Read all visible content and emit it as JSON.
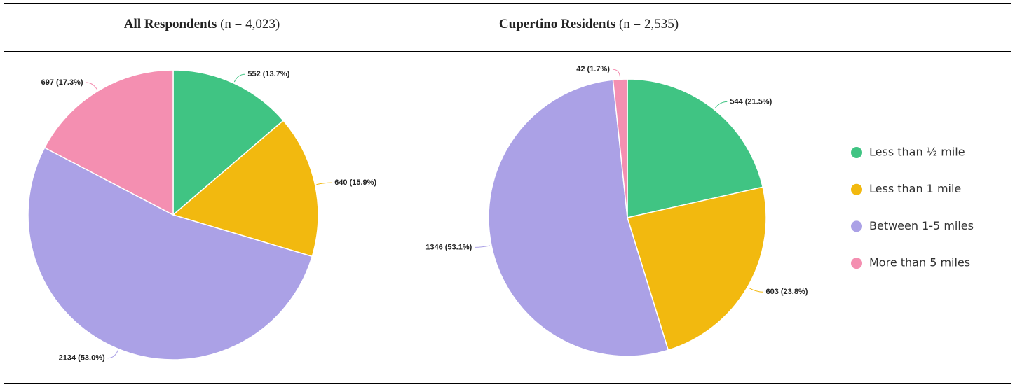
{
  "chart_data": [
    {
      "type": "pie",
      "title": "All Respondents",
      "subtitle": "(n = 4,023)",
      "categories": [
        "Less than ½ mile",
        "Less than 1 mile",
        "Between 1-5 miles",
        "More than 5 miles"
      ],
      "values": [
        552,
        640,
        2134,
        697
      ],
      "value_labels": [
        "552 (13.7%)",
        "640 (15.9%)",
        "2134 (53.0%)",
        "697 (17.3%)"
      ],
      "colors": [
        "#40c483",
        "#f2b90f",
        "#aba1e6",
        "#f48fb1"
      ]
    },
    {
      "type": "pie",
      "title": "Cupertino Residents",
      "subtitle": "(n = 2,535)",
      "categories": [
        "Less than ½ mile",
        "Less than 1 mile",
        "Between 1-5 miles",
        "More than 5 miles"
      ],
      "values": [
        544,
        603,
        1346,
        42
      ],
      "value_labels": [
        "544 (21.5%)",
        "603 (23.8%)",
        "1346 (53.1%)",
        "42 (1.7%)"
      ],
      "colors": [
        "#40c483",
        "#f2b90f",
        "#aba1e6",
        "#f48fb1"
      ],
      "legend": "right"
    }
  ]
}
